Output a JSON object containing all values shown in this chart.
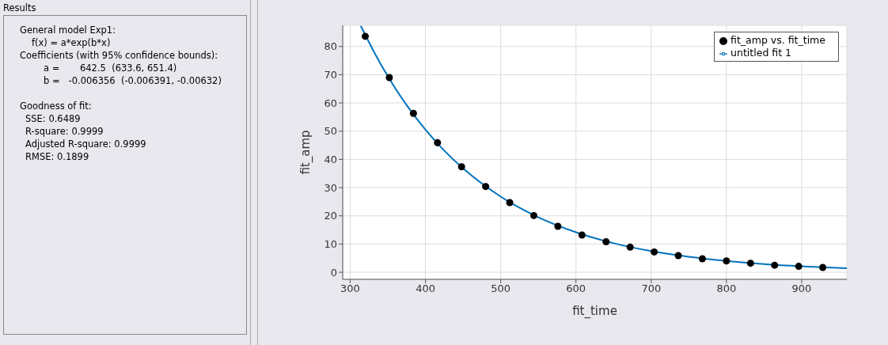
{
  "chart_data": {
    "type": "scatter",
    "xlabel": "fit_time",
    "ylabel": "fit_amp",
    "xlim": [
      290,
      960
    ],
    "xticks": [
      300,
      400,
      500,
      600,
      700,
      800,
      900
    ],
    "ylim": [
      -2.5,
      87.5
    ],
    "yticks": [
      0,
      10,
      20,
      30,
      40,
      50,
      60,
      70,
      80
    ],
    "grid": true,
    "legend": "top right",
    "series": [
      {
        "name": "untitled fit 1",
        "type": "line",
        "color": "#0072bd",
        "marker": "none",
        "line_style": "solid",
        "x": [
          314,
          330,
          350,
          375,
          400,
          425,
          450,
          500,
          550,
          600,
          650,
          700,
          750,
          800,
          850,
          900,
          960
        ],
        "values": [
          87.3,
          78.9,
          69.4,
          59.2,
          50.5,
          43.1,
          36.8,
          26.8,
          19.5,
          14.2,
          10.3,
          7.5,
          5.5,
          4.0,
          2.9,
          2.1,
          1.4
        ]
      },
      {
        "name": "fit_amp vs. fit_time",
        "color": "#000000",
        "marker": "circle",
        "x": [
          320,
          352,
          384,
          416,
          448,
          480,
          512,
          544,
          576,
          608,
          640,
          672,
          704,
          736,
          768,
          800,
          832,
          864,
          896,
          928
        ],
        "values": [
          83.6,
          69,
          56.3,
          45.9,
          37.4,
          30.4,
          24.7,
          20.1,
          16.3,
          13.2,
          10.8,
          8.9,
          7.2,
          5.9,
          4.8,
          4.0,
          3.2,
          2.5,
          2.1,
          1.7
        ]
      }
    ],
    "annotations": [
      "Results",
      "General model Exp1:",
      "f(x) = a*exp(b*x)",
      "Coefficients (with 95% confidence bounds):",
      "a =       642.5  (633.6, 651.4)",
      "b =   -0.006356  (-0.006391, -0.00632)",
      "Goodness of fit:",
      "SSE: 0.6489",
      "R-square: 0.9999",
      "Adjusted R-square: 0.9999",
      "RMSE: 0.1899"
    ]
  }
}
